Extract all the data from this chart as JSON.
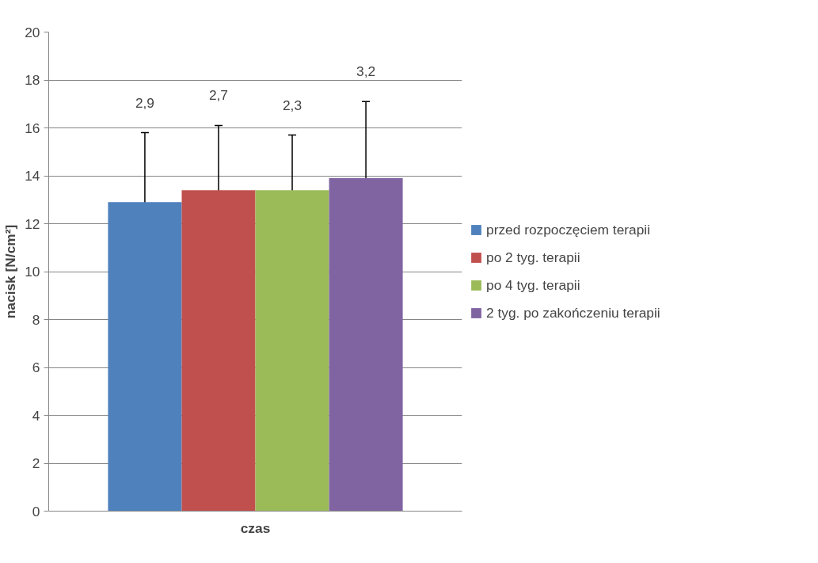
{
  "chart_data": {
    "type": "bar",
    "xlabel": "czas",
    "ylabel": "nacisk [N/cm²]",
    "categories": [
      null
    ],
    "ylim": [
      0,
      20
    ],
    "yticks": [
      0,
      2,
      4,
      6,
      8,
      10,
      12,
      14,
      16,
      18,
      20
    ],
    "grid": "y",
    "legend": "right",
    "annotations": [
      "2,9",
      "2,7",
      "2,3",
      "3,2"
    ],
    "series": [
      {
        "name": "przed rozpoczęciem terapii",
        "color": "#4f81bd",
        "values": [
          12.9
        ],
        "errors": [
          2.9
        ]
      },
      {
        "name": "po 2 tyg. terapii",
        "color": "#c0504d",
        "values": [
          13.4
        ],
        "errors": [
          2.7
        ]
      },
      {
        "name": "po 4 tyg. terapii",
        "color": "#9bbb59",
        "values": [
          13.4
        ],
        "errors": [
          2.3
        ]
      },
      {
        "name": "2 tyg. po zakończeniu terapii",
        "color": "#8064a2",
        "values": [
          13.9
        ],
        "errors": [
          3.2
        ]
      }
    ]
  }
}
